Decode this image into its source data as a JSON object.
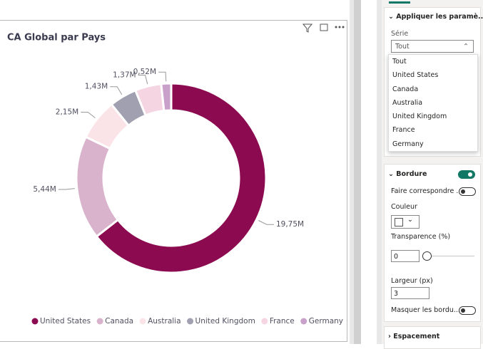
{
  "chart_data": {
    "type": "donut",
    "title": "CA Global par Pays",
    "categories": [
      "United States",
      "Canada",
      "Australia",
      "United Kingdom",
      "France",
      "Germany"
    ],
    "values": [
      19.75,
      5.44,
      2.15,
      1.43,
      1.37,
      0.52
    ],
    "value_labels": [
      "19,75M",
      "5,44M",
      "2,15M",
      "1,43M",
      "1,37M",
      "0,52M"
    ],
    "colors": [
      "#8b0a50",
      "#d9b3cc",
      "#fbe4e8",
      "#a0a0b0",
      "#f5d5e2",
      "#c9a0c9"
    ]
  },
  "format_pane": {
    "section": "Appliquer les paramè...",
    "series_label": "Série",
    "series_selected": "Tout",
    "series_options": [
      "Tout",
      "United States",
      "Canada",
      "Australia",
      "United Kingdom",
      "France",
      "Germany"
    ],
    "border": {
      "title": "Bordure",
      "match": "Faire correspondre ...",
      "color": "Couleur",
      "transparency": "Transparence (%)",
      "transparency_value": 0,
      "width": "Largeur (px)",
      "width_value": 3,
      "hide": "Masquer les bordu..."
    },
    "spacing": "Espacement"
  }
}
